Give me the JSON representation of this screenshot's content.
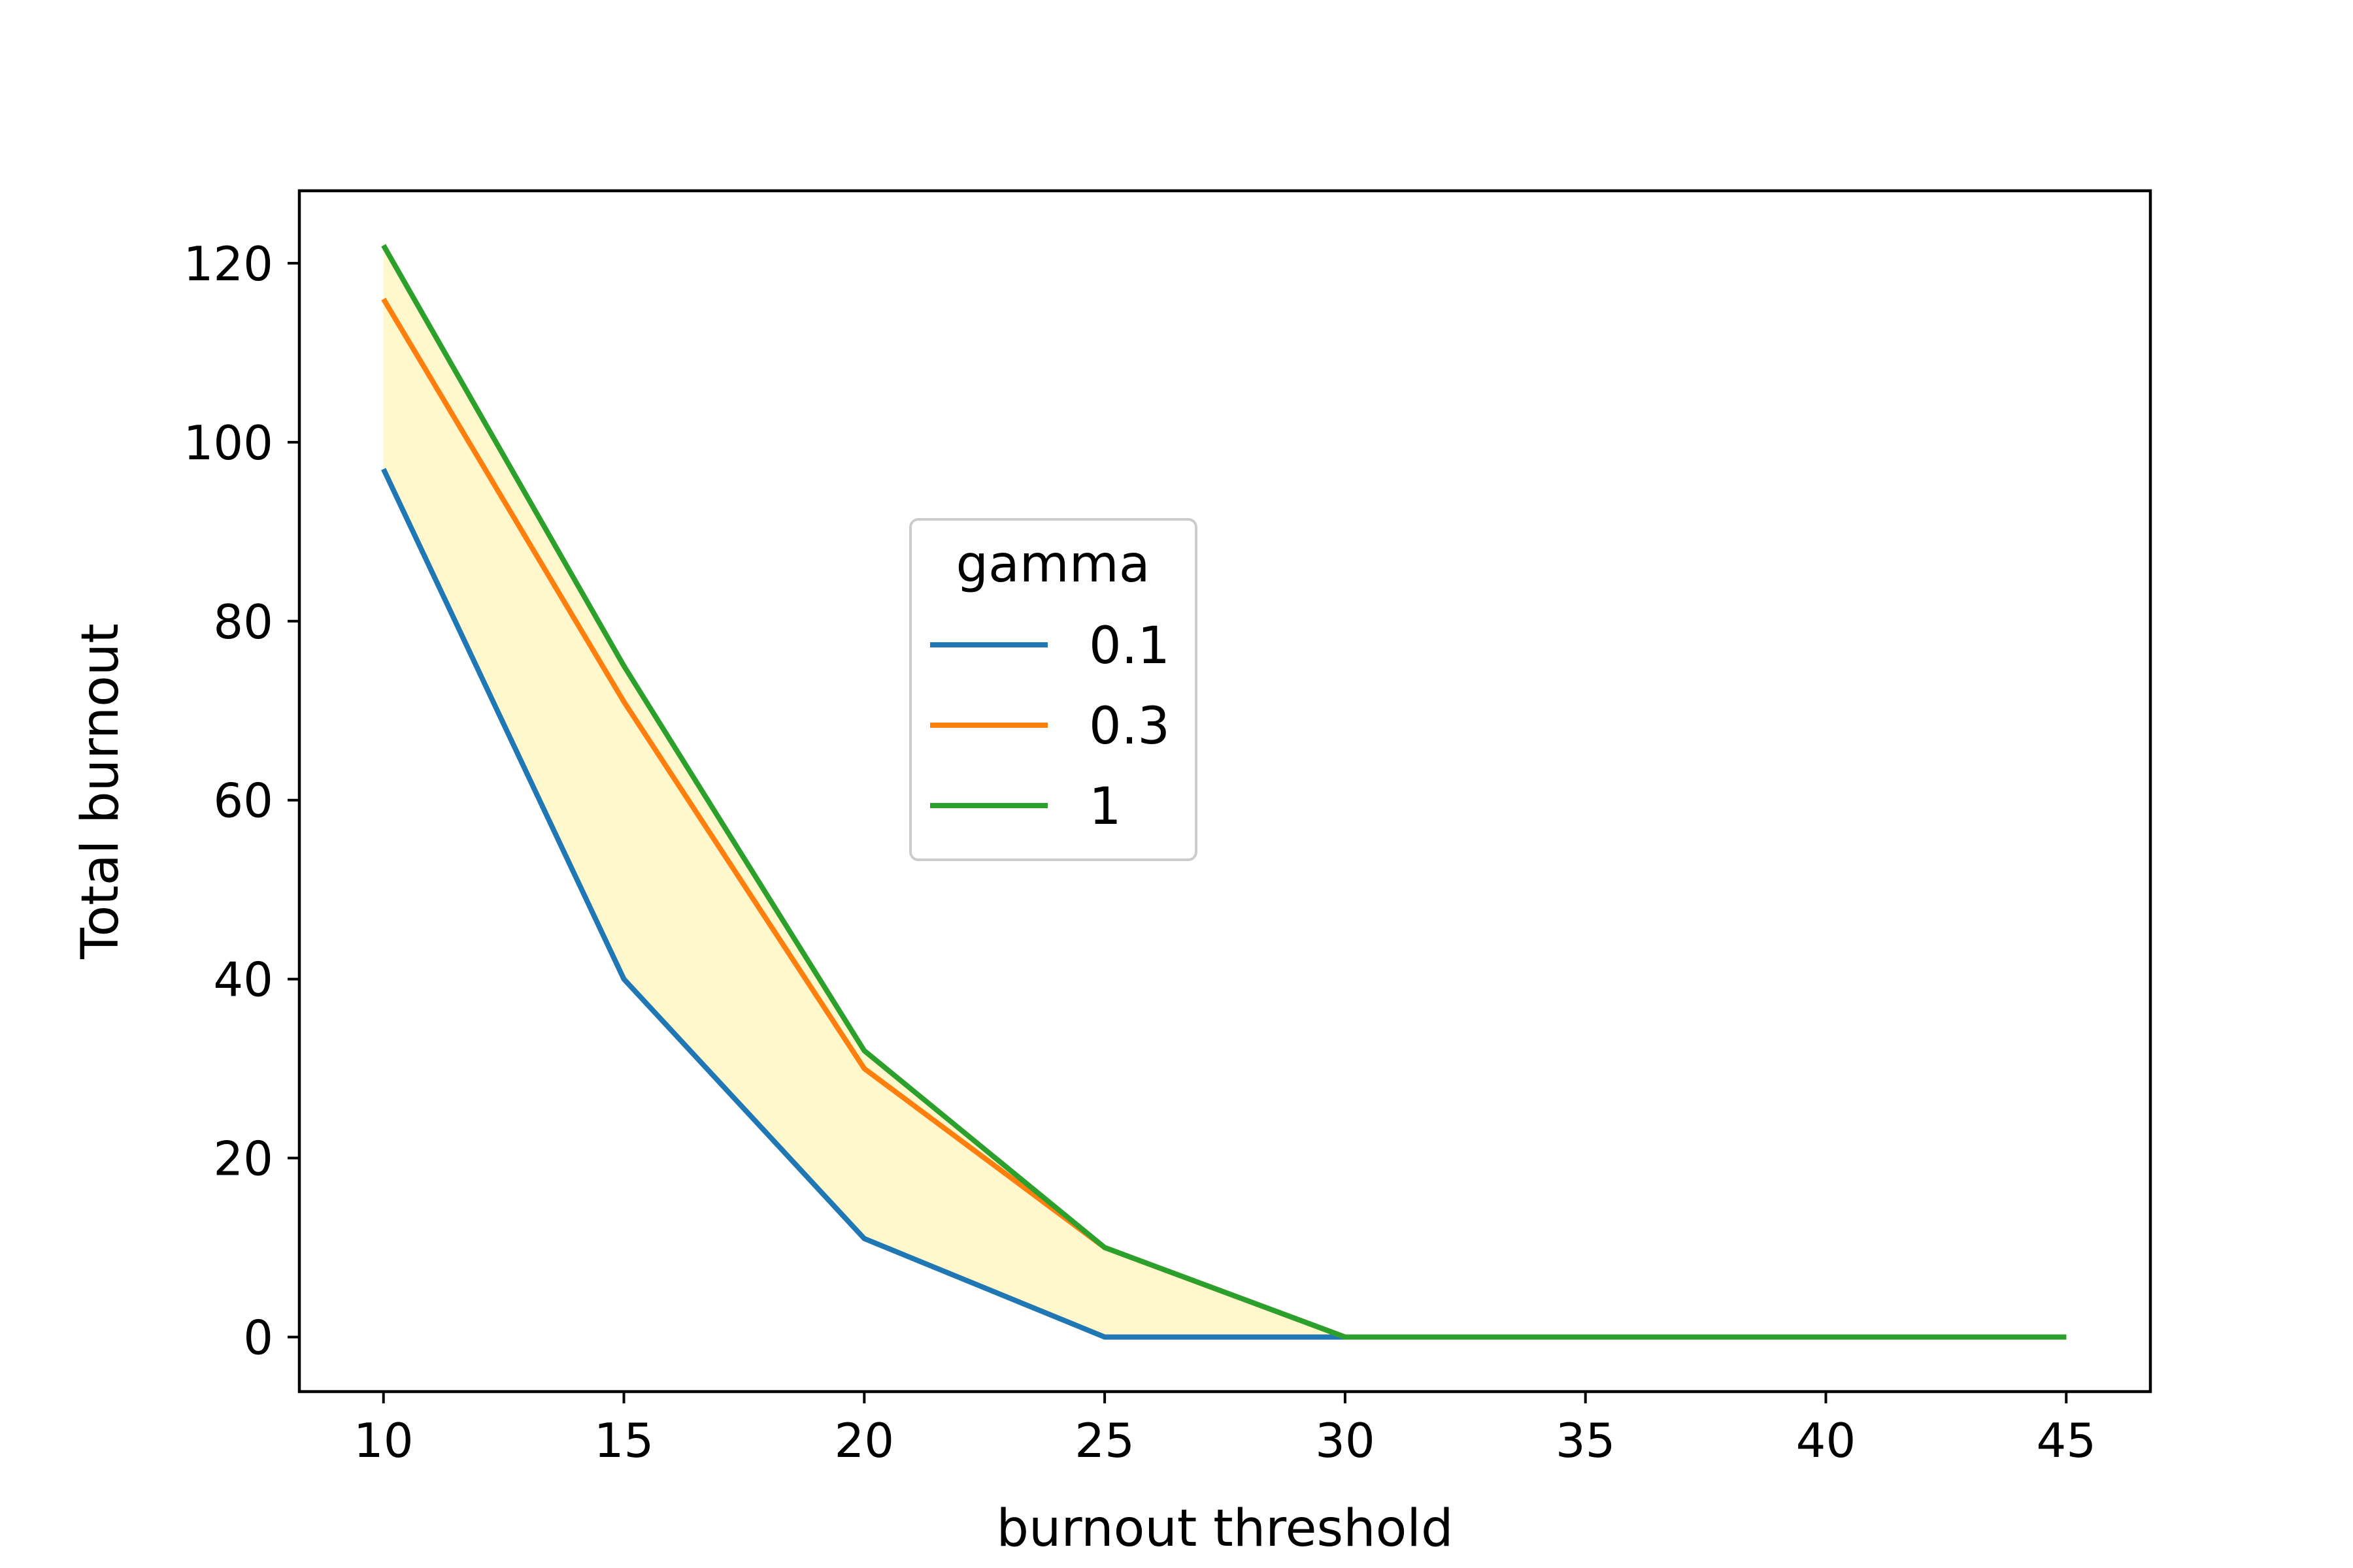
{
  "chart_data": {
    "type": "line",
    "title": "",
    "xlabel": "burnout threshold",
    "ylabel": "Total burnout",
    "x": [
      10,
      15,
      20,
      25,
      30,
      35,
      40,
      45
    ],
    "xticks": [
      10,
      15,
      20,
      25,
      30,
      35,
      40,
      45
    ],
    "yticks": [
      0,
      20,
      40,
      60,
      80,
      100,
      120
    ],
    "xlim": [
      8.25,
      46.75
    ],
    "ylim": [
      -6.1,
      128.1
    ],
    "grid": false,
    "legend": {
      "title": "gamma",
      "placement": "center"
    },
    "fill_between": {
      "lower_series": "0.1",
      "upper_series": "1",
      "color": "#fff8cc"
    },
    "series": [
      {
        "name": "0.1",
        "color": "#1f77b4",
        "values": [
          97,
          40,
          11,
          0,
          0,
          0,
          0,
          0
        ]
      },
      {
        "name": "0.3",
        "color": "#ff7f0e",
        "values": [
          116,
          71,
          30,
          10,
          0,
          0,
          0,
          0
        ]
      },
      {
        "name": "1",
        "color": "#2ca02c",
        "values": [
          122,
          75,
          32,
          10,
          0,
          0,
          0,
          0
        ]
      }
    ]
  }
}
